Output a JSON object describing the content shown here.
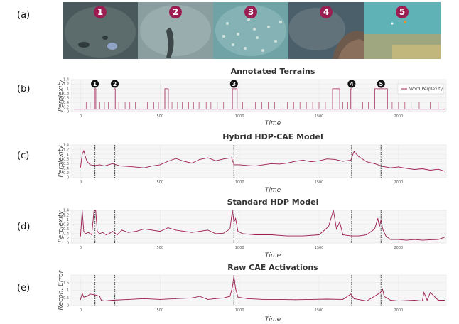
{
  "panel_letters": [
    "(a)",
    "(b)",
    "(c)",
    "(d)",
    "(e)"
  ],
  "photos": [
    {
      "number": "1",
      "colors": [
        "#4a5a5c",
        "#2f3b3d",
        "#6d7b7c"
      ]
    },
    {
      "number": "2",
      "colors": [
        "#8a9ea0",
        "#5e6f71",
        "#a5b7b7"
      ]
    },
    {
      "number": "3",
      "colors": [
        "#6fa3a6",
        "#4b7f83",
        "#9cc4c4"
      ]
    },
    {
      "number": "4",
      "colors": [
        "#4b5f6a",
        "#6e5a4c",
        "#7d8a90"
      ]
    },
    {
      "number": "5",
      "colors": [
        "#5fb2b6",
        "#b9a36a",
        "#d9c27c"
      ]
    }
  ],
  "accent_color": "#9c1d52",
  "chart_data": [
    {
      "type": "line",
      "title": "Annotated Terrains",
      "xlabel": "Time",
      "ylabel": "Perplexity",
      "xlim": [
        -60,
        2300
      ],
      "ylim": [
        0,
        1.4
      ],
      "x_ticks": [
        "0",
        "500",
        "1000",
        "1500",
        "2000"
      ],
      "y_ticks": [
        "0",
        "0.2",
        "0.4",
        "0.6",
        "0.8",
        "1",
        "1.2",
        "1.4"
      ],
      "legend": "Word Perplexity",
      "legend_position": "top-right",
      "grid": true,
      "annotations": [
        {
          "label": "1",
          "x": 90
        },
        {
          "label": "2",
          "x": 215
        },
        {
          "label": "3",
          "x": 965
        },
        {
          "label": "4",
          "x": 1705
        },
        {
          "label": "5",
          "x": 1890
        }
      ],
      "series": [
        {
          "segments": [
            {
              "x0": 88,
              "x1": 96,
              "y": 1.0
            },
            {
              "x0": 210,
              "x1": 218,
              "y": 1.0
            },
            {
              "x0": 530,
              "x1": 552,
              "y": 1.0
            },
            {
              "x0": 955,
              "x1": 985,
              "y": 1.0
            },
            {
              "x0": 1585,
              "x1": 1630,
              "y": 1.0
            },
            {
              "x0": 1700,
              "x1": 1708,
              "y": 1.0
            },
            {
              "x0": 1850,
              "x1": 1930,
              "y": 1.0
            }
          ],
          "spikes": [
            10,
            35,
            60,
            120,
            150,
            175,
            240,
            280,
            310,
            345,
            380,
            420,
            460,
            490,
            575,
            610,
            640,
            680,
            710,
            745,
            790,
            820,
            860,
            900,
            1020,
            1060,
            1100,
            1140,
            1180,
            1220,
            1260,
            1300,
            1340,
            1380,
            1420,
            1460,
            1500,
            1540,
            1650,
            1680,
            1740,
            1775,
            1810,
            1960,
            2000,
            2040,
            2080,
            2130,
            2200,
            2250
          ],
          "baseline": 0.1
        }
      ]
    },
    {
      "type": "line",
      "title": "Hybrid HDP-CAE Model",
      "xlabel": "Time",
      "ylabel": "Perplexity",
      "xlim": [
        -60,
        2300
      ],
      "ylim": [
        0,
        1.4
      ],
      "x_ticks": [
        "0",
        "500",
        "1000",
        "1500",
        "2000"
      ],
      "y_ticks": [
        "0",
        "0.2",
        "0.4",
        "0.6",
        "0.8",
        "1",
        "1.2",
        "1.4"
      ],
      "vlines": [
        90,
        215,
        965,
        1705,
        1890
      ],
      "grid": true,
      "series": [
        {
          "x": [
            0,
            10,
            20,
            30,
            40,
            60,
            90,
            120,
            150,
            200,
            250,
            300,
            350,
            400,
            450,
            500,
            550,
            600,
            650,
            700,
            750,
            800,
            850,
            900,
            950,
            965,
            1000,
            1050,
            1100,
            1150,
            1200,
            1250,
            1300,
            1350,
            1400,
            1450,
            1500,
            1550,
            1600,
            1650,
            1700,
            1720,
            1750,
            1800,
            1850,
            1900,
            1950,
            2000,
            2050,
            2100,
            2150,
            2200,
            2250,
            2290
          ],
          "y": [
            0.45,
            1.0,
            1.15,
            0.9,
            0.7,
            0.55,
            0.52,
            0.55,
            0.5,
            0.6,
            0.5,
            0.48,
            0.45,
            0.42,
            0.5,
            0.55,
            0.7,
            0.82,
            0.7,
            0.62,
            0.78,
            0.85,
            0.72,
            0.8,
            0.85,
            0.55,
            0.55,
            0.52,
            0.5,
            0.55,
            0.6,
            0.58,
            0.62,
            0.7,
            0.75,
            0.68,
            0.72,
            0.8,
            0.78,
            0.7,
            0.75,
            1.12,
            0.9,
            0.68,
            0.6,
            0.48,
            0.42,
            0.46,
            0.4,
            0.35,
            0.38,
            0.32,
            0.36,
            0.28
          ]
        }
      ]
    },
    {
      "type": "line",
      "title": "Standard HDP Model",
      "xlabel": "Time",
      "ylabel": "Perplexity",
      "xlim": [
        -60,
        2300
      ],
      "ylim": [
        0,
        1.4
      ],
      "x_ticks": [
        "0",
        "500",
        "1000",
        "1500",
        "2000"
      ],
      "y_ticks": [
        "0",
        "0.2",
        "0.4",
        "0.6",
        "0.8",
        "1",
        "1.2",
        "1.4"
      ],
      "vlines": [
        90,
        215,
        965,
        1705,
        1890
      ],
      "grid": true,
      "series": [
        {
          "x": [
            0,
            10,
            20,
            30,
            50,
            70,
            85,
            95,
            105,
            120,
            140,
            160,
            180,
            200,
            230,
            260,
            300,
            350,
            400,
            450,
            500,
            550,
            600,
            650,
            700,
            750,
            800,
            850,
            900,
            940,
            955,
            965,
            975,
            990,
            1020,
            1100,
            1200,
            1300,
            1400,
            1500,
            1560,
            1590,
            1610,
            1630,
            1650,
            1700,
            1750,
            1800,
            1850,
            1870,
            1880,
            1890,
            1900,
            1920,
            1950,
            2000,
            2050,
            2100,
            2150,
            2200,
            2250,
            2290
          ],
          "y": [
            0.3,
            1.4,
            0.5,
            0.4,
            0.45,
            0.35,
            1.4,
            1.4,
            0.5,
            0.4,
            0.45,
            0.35,
            0.4,
            0.5,
            0.35,
            0.55,
            0.45,
            0.5,
            0.6,
            0.55,
            0.5,
            0.65,
            0.55,
            0.5,
            0.45,
            0.5,
            0.55,
            0.4,
            0.42,
            0.6,
            1.4,
            0.9,
            1.05,
            0.5,
            0.4,
            0.35,
            0.35,
            0.3,
            0.3,
            0.35,
            0.7,
            1.4,
            0.6,
            0.9,
            0.35,
            0.3,
            0.3,
            0.35,
            0.6,
            1.05,
            0.7,
            1.0,
            0.6,
            0.3,
            0.15,
            0.15,
            0.12,
            0.15,
            0.12,
            0.14,
            0.15,
            0.25
          ]
        }
      ]
    },
    {
      "type": "line",
      "title": "Raw CAE Activations",
      "xlabel": "Time",
      "ylabel": "Recon. Error",
      "xlim": [
        -60,
        2300
      ],
      "ylim": [
        0,
        2
      ],
      "x_ticks": [
        "0",
        "500",
        "1000",
        "1500",
        "2000"
      ],
      "y_ticks": [
        "0",
        "0.5",
        "1",
        "1.5"
      ],
      "vlines": [
        90,
        215,
        965,
        1705,
        1890
      ],
      "grid": true,
      "series": [
        {
          "x": [
            0,
            10,
            20,
            40,
            60,
            90,
            120,
            130,
            150,
            200,
            300,
            400,
            500,
            600,
            700,
            750,
            800,
            850,
            900,
            940,
            955,
            965,
            975,
            990,
            1050,
            1150,
            1250,
            1350,
            1450,
            1550,
            1650,
            1700,
            1720,
            1800,
            1880,
            1890,
            1900,
            1910,
            1950,
            2000,
            2100,
            2150,
            2160,
            2180,
            2200,
            2250,
            2290
          ],
          "y": [
            0.4,
            0.8,
            0.55,
            0.6,
            0.75,
            0.7,
            0.6,
            0.35,
            0.3,
            0.35,
            0.4,
            0.45,
            0.4,
            0.45,
            0.5,
            0.6,
            0.4,
            0.45,
            0.5,
            0.6,
            1.2,
            1.95,
            1.1,
            0.55,
            0.45,
            0.4,
            0.4,
            0.38,
            0.4,
            0.42,
            0.4,
            0.75,
            0.45,
            0.3,
            0.8,
            0.9,
            1.05,
            0.6,
            0.35,
            0.3,
            0.35,
            0.3,
            0.85,
            0.35,
            0.85,
            0.35,
            0.35
          ]
        }
      ]
    }
  ]
}
